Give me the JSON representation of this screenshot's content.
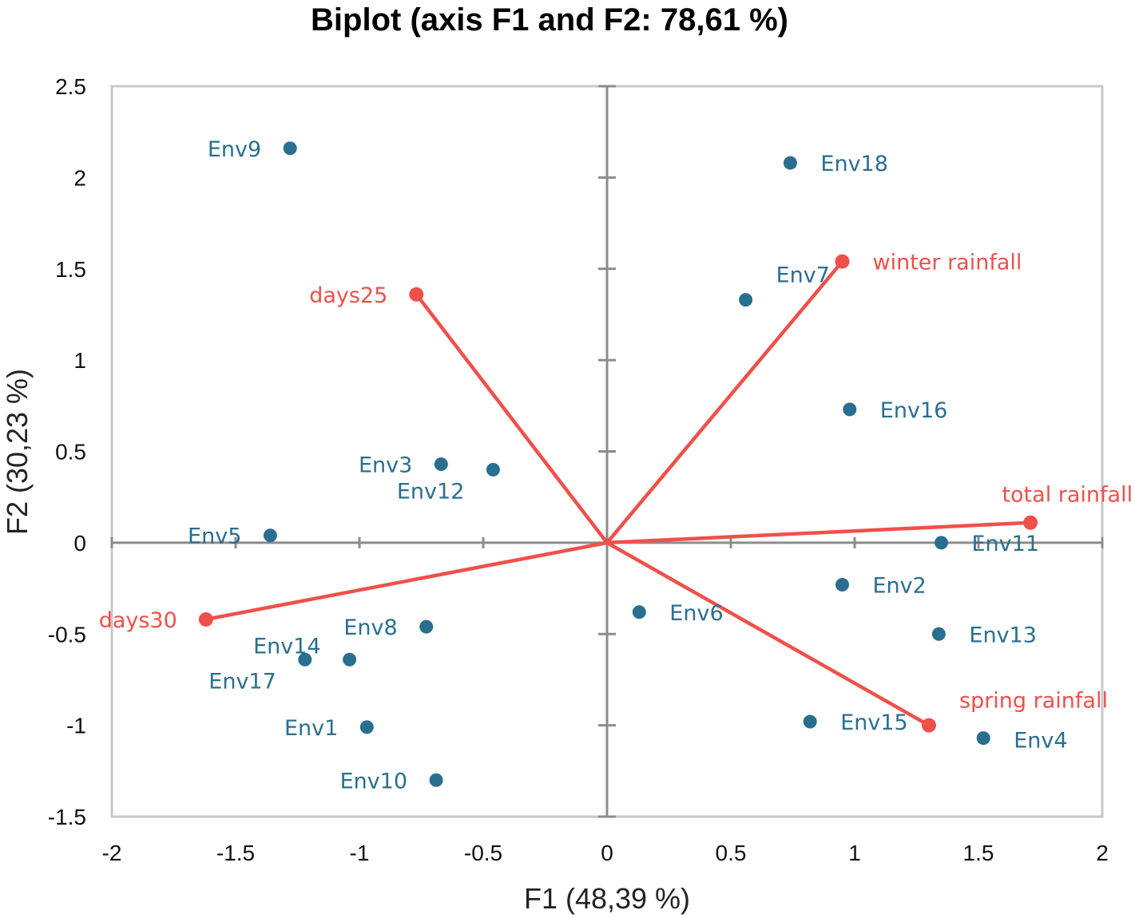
{
  "chart_data": {
    "type": "scatter",
    "title": "Biplot (axis F1 and F2: 78,61 %)",
    "xlabel": "F1 (48,39 %)",
    "ylabel": "F2 (30,23 %)",
    "xlim": [
      -2,
      2
    ],
    "ylim": [
      -1.5,
      2.5
    ],
    "x_ticks": [
      -2,
      -1.5,
      -1,
      -0.5,
      0,
      0.5,
      1,
      1.5,
      2
    ],
    "y_ticks": [
      -1.5,
      -1,
      -0.5,
      0,
      0.5,
      1,
      1.5,
      2,
      2.5
    ],
    "x_tick_labels": [
      "-2",
      "-1.5",
      "-1",
      "-0.5",
      "0",
      "0.5",
      "1",
      "1.5",
      "2"
    ],
    "y_tick_labels": [
      "-1.5",
      "-1",
      "-0.5",
      "0",
      "0.5",
      "1",
      "1.5",
      "2",
      "2.5"
    ],
    "grid": false,
    "observations": {
      "name": "Environments",
      "color": "#2a6f8f",
      "points": [
        {
          "label": "Env1",
          "x": -0.97,
          "y": -1.01,
          "label_side": "left"
        },
        {
          "label": "Env2",
          "x": 0.95,
          "y": -0.23,
          "label_side": "right"
        },
        {
          "label": "Env3",
          "x": -0.67,
          "y": 0.43,
          "label_side": "left"
        },
        {
          "label": "Env4",
          "x": 1.52,
          "y": -1.07,
          "label_side": "right-below"
        },
        {
          "label": "Env5",
          "x": -1.36,
          "y": 0.04,
          "label_side": "left"
        },
        {
          "label": "Env6",
          "x": 0.13,
          "y": -0.38,
          "label_side": "right"
        },
        {
          "label": "Env7",
          "x": 0.56,
          "y": 1.33,
          "label_side": "above-right"
        },
        {
          "label": "Env8",
          "x": -0.73,
          "y": -0.46,
          "label_side": "left"
        },
        {
          "label": "Env9",
          "x": -1.28,
          "y": 2.16,
          "label_side": "left"
        },
        {
          "label": "Env10",
          "x": -0.69,
          "y": -1.3,
          "label_side": "left"
        },
        {
          "label": "Env11",
          "x": 1.35,
          "y": 0.0,
          "label_side": "right"
        },
        {
          "label": "Env12",
          "x": -0.46,
          "y": 0.4,
          "label_side": "below-left"
        },
        {
          "label": "Env13",
          "x": 1.34,
          "y": -0.5,
          "label_side": "right"
        },
        {
          "label": "Env14",
          "x": -1.04,
          "y": -0.64,
          "label_side": "above-left"
        },
        {
          "label": "Env15",
          "x": 0.82,
          "y": -0.98,
          "label_side": "right"
        },
        {
          "label": "Env16",
          "x": 0.98,
          "y": 0.73,
          "label_side": "right"
        },
        {
          "label": "Env17",
          "x": -1.22,
          "y": -0.64,
          "label_side": "below-left"
        },
        {
          "label": "Env18",
          "x": 0.74,
          "y": 2.08,
          "label_side": "right"
        }
      ]
    },
    "variables": {
      "name": "Variables",
      "color": "#f0504a",
      "vectors": [
        {
          "label": "days25",
          "x": -0.77,
          "y": 1.36,
          "label_side": "left"
        },
        {
          "label": "winter rainfall",
          "x": 0.95,
          "y": 1.54,
          "label_side": "right"
        },
        {
          "label": "total rainfall",
          "x": 1.71,
          "y": 0.11,
          "label_side": "above"
        },
        {
          "label": "days30",
          "x": -1.62,
          "y": -0.42,
          "label_side": "left"
        },
        {
          "label": "spring rainfall",
          "x": 1.3,
          "y": -1.0,
          "label_side": "above-right"
        }
      ]
    }
  }
}
